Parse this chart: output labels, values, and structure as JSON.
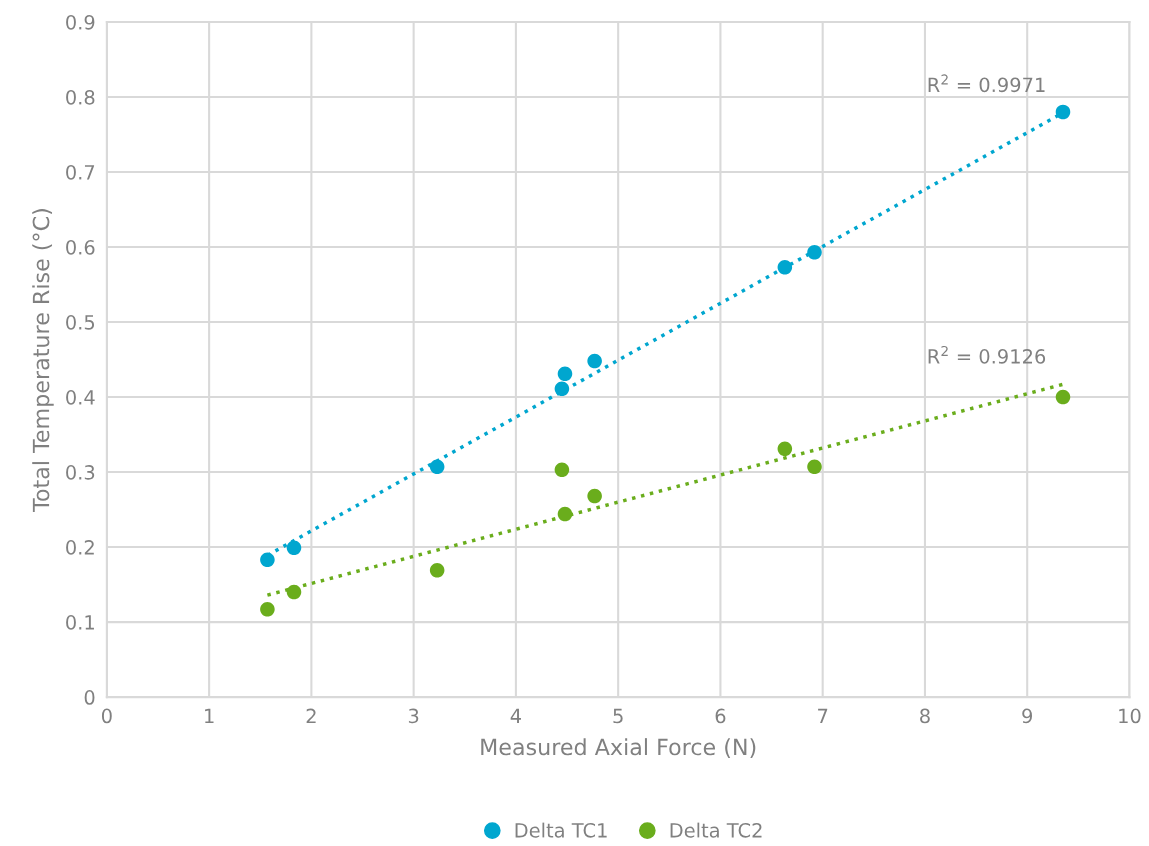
{
  "chart_data": {
    "type": "scatter",
    "xlabel": "Measured Axial Force (N)",
    "ylabel": "Total Temperature Rise (°C)",
    "xlim": [
      0,
      10
    ],
    "xticks": [
      0,
      1,
      2,
      3,
      4,
      5,
      6,
      7,
      8,
      9,
      10
    ],
    "ylim": [
      0,
      0.9
    ],
    "yticks": [
      0,
      0.1,
      0.2,
      0.3,
      0.4,
      0.5,
      0.6,
      0.7,
      0.8,
      0.9
    ],
    "grid": true,
    "legend": "bottom",
    "marker": "circle",
    "series": [
      {
        "name": "Delta TC1",
        "color": "#00a6cf",
        "x": [
          1.57,
          1.83,
          3.23,
          4.45,
          4.48,
          4.77,
          6.63,
          6.92,
          9.35
        ],
        "values": [
          0.183,
          0.199,
          0.307,
          0.411,
          0.431,
          0.448,
          0.573,
          0.593,
          0.78
        ]
      },
      {
        "name": "Delta TC2",
        "color": "#6aad1c",
        "x": [
          1.57,
          1.83,
          3.23,
          4.45,
          4.48,
          4.77,
          6.63,
          6.92,
          9.35
        ],
        "values": [
          0.117,
          0.14,
          0.169,
          0.303,
          0.244,
          0.268,
          0.331,
          0.307,
          0.4
        ]
      },
      {
        "type": "line",
        "color": "#00a6cf",
        "marker": "none",
        "line_style": "dotted",
        "x": [
          1.57,
          9.35
        ],
        "values": [
          0.189,
          0.779
        ]
      },
      {
        "type": "line",
        "color": "#6aad1c",
        "marker": "none",
        "line_style": "dotted",
        "x": [
          1.57,
          9.35
        ],
        "values": [
          0.136,
          0.417
        ]
      }
    ],
    "annotations": [
      "R$^{2}$ = 0.9971",
      "R$^{2}$ = 0.9126"
    ]
  }
}
